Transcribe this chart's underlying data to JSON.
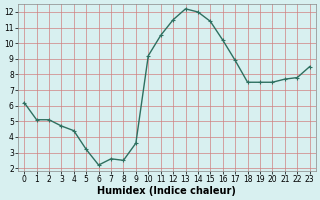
{
  "x": [
    0,
    1,
    2,
    3,
    4,
    5,
    6,
    7,
    8,
    9,
    10,
    11,
    12,
    13,
    14,
    15,
    16,
    17,
    18,
    19,
    20,
    21,
    22,
    23
  ],
  "y": [
    6.2,
    5.1,
    5.1,
    4.7,
    4.4,
    3.2,
    2.2,
    2.6,
    2.5,
    3.6,
    9.2,
    10.5,
    11.5,
    12.2,
    12.0,
    11.4,
    10.2,
    8.9,
    7.5,
    7.5,
    7.5,
    7.7,
    7.8,
    8.5
  ],
  "xlabel": "Humidex (Indice chaleur)",
  "xlim_min": -0.5,
  "xlim_max": 23.5,
  "ylim_min": 1.8,
  "ylim_max": 12.5,
  "yticks": [
    2,
    3,
    4,
    5,
    6,
    7,
    8,
    9,
    10,
    11,
    12
  ],
  "xticks": [
    0,
    1,
    2,
    3,
    4,
    5,
    6,
    7,
    8,
    9,
    10,
    11,
    12,
    13,
    14,
    15,
    16,
    17,
    18,
    19,
    20,
    21,
    22,
    23
  ],
  "line_color": "#2e7060",
  "marker": "+",
  "marker_size": 3,
  "linewidth": 1.0,
  "bg_color": "#d8f0f0",
  "grid_color": "#d08080",
  "tick_fontsize": 5.5,
  "xlabel_fontsize": 7
}
